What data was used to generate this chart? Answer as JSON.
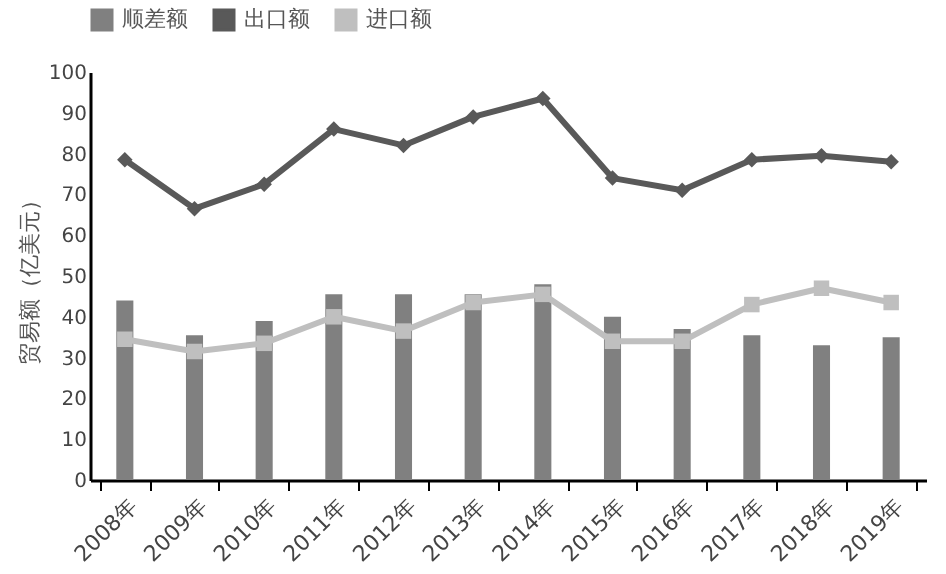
{
  "chart_data": {
    "type": "bar",
    "ylabel": "贸易额（亿美元）",
    "categories": [
      "2008年",
      "2009年",
      "2010年",
      "2011年",
      "2012年",
      "2013年",
      "2014年",
      "2015年",
      "2016年",
      "2017年",
      "2018年",
      "2019年"
    ],
    "series": [
      {
        "name": "顺差额",
        "color": "#808080",
        "values": [
          44,
          35.5,
          39,
          45.5,
          45.5,
          45.5,
          48,
          40,
          37,
          35.5,
          33,
          35
        ]
      },
      {
        "name": "出口额",
        "type": "line",
        "color": "#595959",
        "marker": "diamond",
        "values": [
          78.5,
          66.5,
          72.5,
          86,
          82,
          89,
          93.5,
          74,
          71,
          78.5,
          79.5,
          78
        ]
      },
      {
        "name": "进口额",
        "type": "line",
        "color": "#bfbfbf",
        "marker": "square",
        "values": [
          34.5,
          31.5,
          33.5,
          40,
          36.5,
          43.5,
          45.5,
          34,
          34,
          43,
          47,
          43.5
        ]
      }
    ],
    "ylim": [
      0,
      100
    ],
    "yticks": [
      0,
      10,
      20,
      30,
      40,
      50,
      60,
      70,
      80,
      90,
      100
    ],
    "grid": false,
    "legend": "top"
  }
}
